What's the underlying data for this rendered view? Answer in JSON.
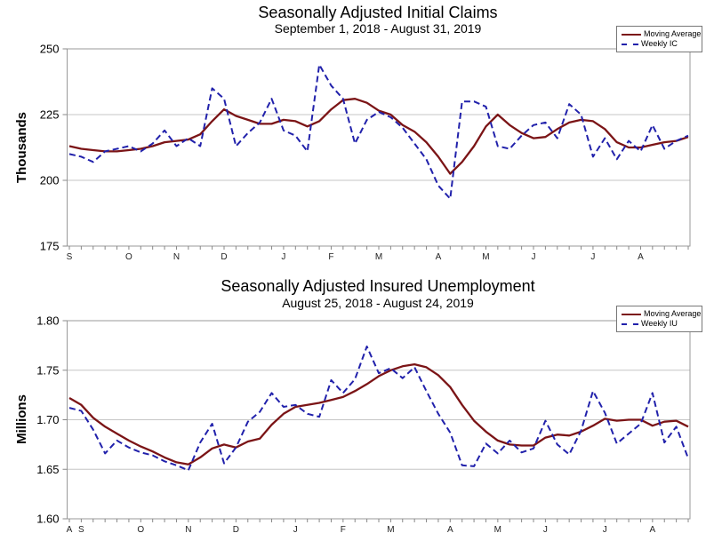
{
  "chart_data": [
    {
      "type": "line",
      "title": "Seasonally Adjusted Initial Claims",
      "subtitle": "September 1, 2018 - August 31, 2019",
      "ylabel": "Thousands",
      "xlabel": "",
      "ylim": [
        175,
        250
      ],
      "yticks": [
        175,
        200,
        225,
        250
      ],
      "ytick_labels": [
        "175",
        "200",
        "225",
        "250"
      ],
      "grid": true,
      "legend_position": "top-right",
      "weeks": 53,
      "month_ticks": [
        {
          "label": "S",
          "week": 0
        },
        {
          "label": "O",
          "week": 5
        },
        {
          "label": "N",
          "week": 9
        },
        {
          "label": "D",
          "week": 13
        },
        {
          "label": "J",
          "week": 18
        },
        {
          "label": "F",
          "week": 22
        },
        {
          "label": "M",
          "week": 26
        },
        {
          "label": "A",
          "week": 31
        },
        {
          "label": "M",
          "week": 35
        },
        {
          "label": "J",
          "week": 39
        },
        {
          "label": "J",
          "week": 44
        },
        {
          "label": "A",
          "week": 48
        }
      ],
      "series": [
        {
          "name": "Moving Average",
          "style": "solid",
          "color": "#7b1416",
          "values": [
            213,
            212,
            211.5,
            211,
            211,
            211.5,
            212,
            213,
            214.5,
            215,
            215.5,
            217.5,
            222.5,
            227,
            224.5,
            223,
            221.5,
            221.5,
            223,
            222.5,
            220.5,
            222.5,
            227,
            230.5,
            231,
            229.5,
            226.5,
            225,
            221,
            218.5,
            214.5,
            209,
            202.5,
            207,
            213,
            220.5,
            225,
            221,
            218,
            216,
            216.5,
            219.5,
            222,
            223,
            222.5,
            219.5,
            214.5,
            212.5,
            212.5,
            213.5,
            214.5,
            215,
            216.5
          ]
        },
        {
          "name": "Weekly IC",
          "style": "dashed",
          "color": "#2121ab",
          "values": [
            210,
            209,
            207,
            211,
            212,
            213,
            211,
            214,
            219,
            213,
            216,
            213,
            235,
            231,
            213,
            218,
            222,
            231,
            219,
            217,
            211,
            244,
            236,
            231,
            214,
            223,
            226,
            224,
            220,
            214,
            208,
            198,
            193,
            230,
            230,
            228,
            213,
            212,
            217,
            221,
            222,
            216,
            229,
            225,
            209,
            216,
            208,
            215,
            211,
            221,
            212,
            215,
            217
          ]
        }
      ]
    },
    {
      "type": "line",
      "title": "Seasonally Adjusted Insured Unemployment",
      "subtitle": "August 25, 2018 - August 24, 2019",
      "ylabel": "Millions",
      "xlabel": "",
      "ylim": [
        1.6,
        1.8
      ],
      "yticks": [
        1.6,
        1.65,
        1.7,
        1.75,
        1.8
      ],
      "ytick_labels": [
        "1.60",
        "1.65",
        "1.70",
        "1.75",
        "1.80"
      ],
      "grid": true,
      "legend_position": "top-right",
      "weeks": 53,
      "month_ticks": [
        {
          "label": "A",
          "week": 0
        },
        {
          "label": "S",
          "week": 1
        },
        {
          "label": "O",
          "week": 6
        },
        {
          "label": "N",
          "week": 10
        },
        {
          "label": "D",
          "week": 14
        },
        {
          "label": "J",
          "week": 19
        },
        {
          "label": "F",
          "week": 23
        },
        {
          "label": "M",
          "week": 27
        },
        {
          "label": "A",
          "week": 32
        },
        {
          "label": "M",
          "week": 36
        },
        {
          "label": "J",
          "week": 40
        },
        {
          "label": "J",
          "week": 45
        },
        {
          "label": "A",
          "week": 49
        }
      ],
      "series": [
        {
          "name": "Moving Average",
          "style": "solid",
          "color": "#7b1416",
          "values": [
            1.722,
            1.715,
            1.702,
            1.693,
            1.686,
            1.679,
            1.673,
            1.668,
            1.662,
            1.657,
            1.655,
            1.662,
            1.671,
            1.675,
            1.672,
            1.678,
            1.681,
            1.695,
            1.706,
            1.713,
            1.715,
            1.717,
            1.72,
            1.723,
            1.729,
            1.736,
            1.744,
            1.75,
            1.754,
            1.756,
            1.753,
            1.745,
            1.733,
            1.715,
            1.699,
            1.688,
            1.679,
            1.675,
            1.674,
            1.674,
            1.682,
            1.685,
            1.684,
            1.688,
            1.694,
            1.701,
            1.699,
            1.7,
            1.7,
            1.694,
            1.698,
            1.699,
            1.693
          ]
        },
        {
          "name": "Weekly IU",
          "style": "dashed",
          "color": "#2121ab",
          "values": [
            1.712,
            1.709,
            1.69,
            1.666,
            1.679,
            1.672,
            1.667,
            1.664,
            1.658,
            1.654,
            1.649,
            1.677,
            1.696,
            1.656,
            1.672,
            1.698,
            1.708,
            1.727,
            1.713,
            1.715,
            1.706,
            1.703,
            1.74,
            1.727,
            1.741,
            1.774,
            1.747,
            1.752,
            1.742,
            1.753,
            1.729,
            1.706,
            1.687,
            1.654,
            1.653,
            1.676,
            1.666,
            1.679,
            1.667,
            1.671,
            1.699,
            1.675,
            1.665,
            1.689,
            1.729,
            1.707,
            1.676,
            1.686,
            1.696,
            1.727,
            1.677,
            1.693,
            1.661
          ]
        }
      ]
    }
  ]
}
